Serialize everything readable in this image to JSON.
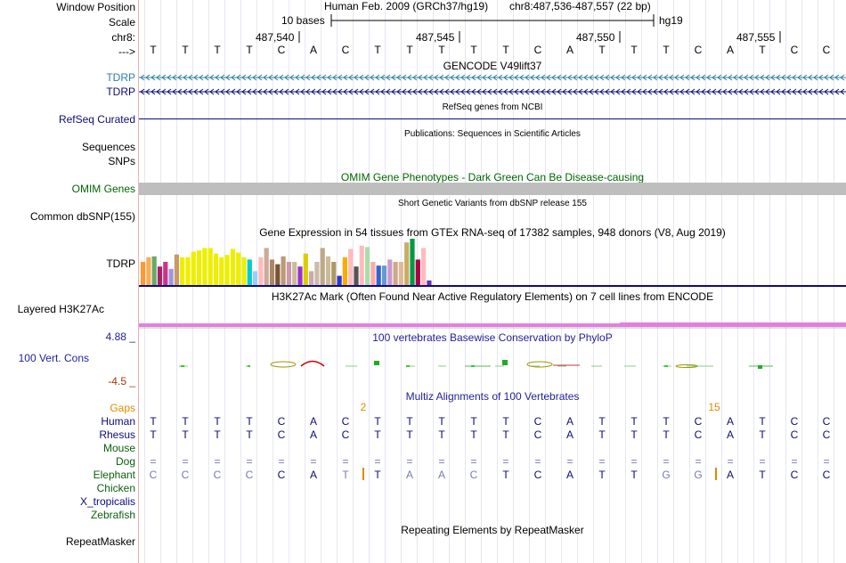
{
  "header": {
    "window_position_label": "Window Position",
    "scale_label": "Scale",
    "chrom_label": "chr8:",
    "arrow_label": "--->",
    "assembly": "Human Feb. 2009 (GRCh37/hg19)",
    "position": "chr8:487,536-487,557 (22 bp)",
    "scale_text": "10 bases",
    "db": "hg19",
    "coords": [
      "487,540",
      "487,545",
      "487,550",
      "487,555"
    ]
  },
  "sequence": [
    "T",
    "T",
    "T",
    "T",
    "C",
    "A",
    "C",
    "T",
    "T",
    "T",
    "T",
    "T",
    "C",
    "A",
    "T",
    "T",
    "T",
    "C",
    "A",
    "T",
    "C",
    "C"
  ],
  "tracks": {
    "gencode": {
      "title": "GENCODE V49lift37",
      "label1": "TDRP",
      "label2": "TDRP"
    },
    "refseq": {
      "title": "RefSeq genes from NCBI",
      "label": "RefSeq Curated"
    },
    "publications": {
      "title": "Publications: Sequences in Scientific Articles",
      "label1": "Sequences",
      "label2": "SNPs"
    },
    "omim": {
      "title": "OMIM Gene Phenotypes - Dark Green Can Be Disease-causing",
      "label": "OMIM Genes"
    },
    "dbsnp": {
      "title": "Short Genetic Variants from dbSNP release 155",
      "label": "Common dbSNP(155)"
    },
    "gtex": {
      "title": "Gene Expression in 54 tissues from GTEx RNA-seq of 17382 samples, 948 donors (V8, Aug 2019)",
      "label": "TDRP"
    },
    "h3k27ac": {
      "title": "H3K27Ac Mark (Often Found Near Active Regulatory Elements) on 7 cell lines from ENCODE",
      "label": "Layered H3K27Ac"
    },
    "phylop": {
      "title": "100 vertebrates Basewise Conservation by PhyloP",
      "label": "100 Vert. Cons",
      "max": "4.88 _",
      "min": "-4.5 _"
    },
    "multiz": {
      "title": "Multiz Alignments of 100 Vertebrates",
      "gaps_label": "Gaps",
      "gap_counts": [
        "2",
        "15"
      ],
      "species": [
        "Human",
        "Rhesus",
        "Mouse",
        "Dog",
        "Elephant",
        "Chicken",
        "X_tropicalis",
        "Zebrafish"
      ],
      "human": [
        "T",
        "T",
        "T",
        "T",
        "C",
        "A",
        "C",
        "T",
        "T",
        "T",
        "T",
        "T",
        "C",
        "A",
        "T",
        "T",
        "T",
        "C",
        "A",
        "T",
        "C",
        "C"
      ],
      "rhesus": [
        "T",
        "T",
        "T",
        "T",
        "C",
        "A",
        "C",
        "T",
        "T",
        "T",
        "T",
        "T",
        "C",
        "A",
        "T",
        "T",
        "T",
        "C",
        "A",
        "T",
        "C",
        "C"
      ],
      "dog": [
        "=",
        "=",
        "=",
        "=",
        "=",
        "=",
        "=",
        "=",
        "=",
        "=",
        "=",
        "=",
        "=",
        "=",
        "=",
        "=",
        "=",
        "=",
        "=",
        "=",
        "=",
        "="
      ],
      "elephant": [
        "C",
        "C",
        "C",
        "C",
        "C",
        "A",
        "T",
        "T",
        "A",
        "A",
        "C",
        "T",
        "C",
        "A",
        "T",
        "T",
        "G",
        "G",
        "A",
        "T",
        "C",
        "C"
      ]
    },
    "repeatmasker": {
      "title": "Repeating Elements by RepeatMasker",
      "label": "RepeatMasker"
    }
  },
  "colors": {
    "gencode_light": "#2d7fa8",
    "gencode_dark": "#0c0c78",
    "omim_label": "#006600",
    "omim_bar": "#bebebe",
    "h3k27ac": "#e27fe0",
    "phylop_max": "#1f1f9a",
    "phylop_min": "#a33a0a",
    "gaps": "#e08a00",
    "species_primate": "#0c0c78",
    "species_mammal": "#0c5e0c",
    "elephant_diff": "#7a7ab0"
  },
  "gtex_values": [
    0.5,
    0.6,
    0.62,
    0.4,
    0.5,
    0.35,
    0.66,
    0.6,
    0.6,
    0.72,
    0.75,
    0.8,
    0.8,
    0.68,
    0.6,
    0.65,
    0.78,
    0.7,
    0.6,
    0.55,
    0.3,
    0.6,
    0.8,
    0.55,
    0.45,
    0.62,
    0.5,
    0.5,
    0.4,
    0.68,
    0.3,
    0.5,
    0.8,
    0.62,
    0.5,
    0.2,
    0.6,
    0.78,
    0.4,
    0.85,
    0.82,
    0.5,
    0.42,
    0.42,
    0.55,
    0.5,
    0.5,
    0.92,
    1.0,
    0.55,
    0.8,
    0.1
  ],
  "gtex_colors": [
    "#ff9933",
    "#ffaa55",
    "#66aa66",
    "#aa2266",
    "#cc3388",
    "#9999dd",
    "#cc9966",
    "#eeee00",
    "#eeee00",
    "#eeee00",
    "#eeee00",
    "#eeee00",
    "#eeee00",
    "#eeee00",
    "#eeee00",
    "#eeee00",
    "#eeee00",
    "#eeee00",
    "#eeee00",
    "#00cccc",
    "#99ccff",
    "#ffbbbb",
    "#ccaa99",
    "#aa8866",
    "#775533",
    "#bb9977",
    "#cc99aa",
    "#ccbb99",
    "#9933cc",
    "#ddcc00",
    "#ccaaaa",
    "#ccbbaa",
    "#bbaa88",
    "#ccbb99",
    "#aa9966",
    "#3333cc",
    "#ffaa00",
    "#ffbbbb",
    "#555555",
    "#ffbbbb",
    "#aaddaa",
    "#ffaaaa",
    "#3366cc",
    "#6699cc",
    "#cc99cc",
    "#ccaa88",
    "#ddbb99",
    "#ccaa66",
    "#009944",
    "#aa0044",
    "#ffbbbb",
    "#6633aa"
  ]
}
